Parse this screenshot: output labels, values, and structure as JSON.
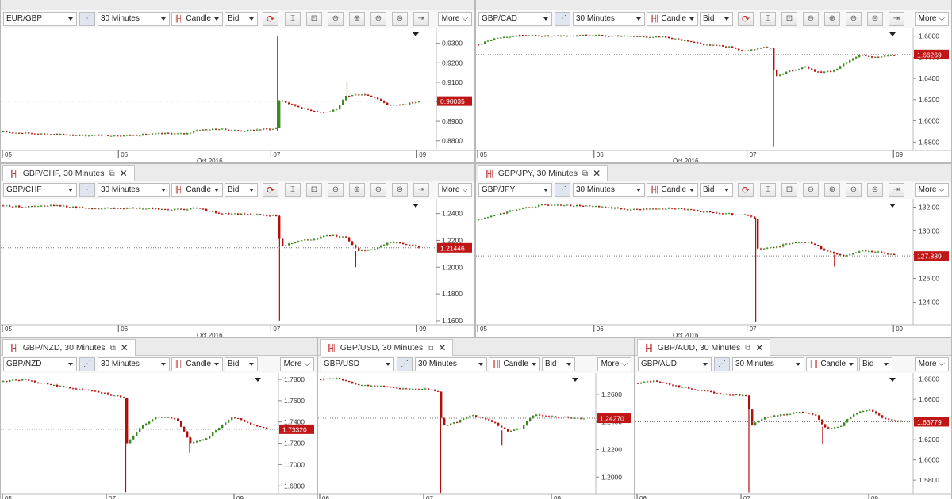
{
  "common": {
    "timeframe": "30 Minutes",
    "chart_type": "Candle",
    "price_side": "Bid",
    "more_label": "More",
    "more_caret": "⌵",
    "close_glyph": "✕",
    "popout_glyph": "⧉",
    "candle_glyph": "╟╢",
    "x_month_label": "Oct 2016",
    "icons": [
      "trend-icon",
      "refresh-icon",
      "cursor-icon",
      "lock-icon",
      "zoom-out-icon",
      "zoom-in-icon",
      "zoom-minus-icon",
      "zoom-reset-icon",
      "scroll-end-icon"
    ],
    "colors": {
      "up": "#3a8a1e",
      "down": "#b20e0e",
      "last_price_bg": "#c01616"
    }
  },
  "panels": [
    {
      "instrument": "EUR/GBP",
      "tab_title": "",
      "x_ticks": [
        "05",
        "06",
        "07",
        "09"
      ],
      "y_ticks": [
        "0.9300",
        "0.9200",
        "0.9100",
        "0.9000",
        "0.8900",
        "0.8800"
      ],
      "last_price": "0.90035"
    },
    {
      "instrument": "GBP/CAD",
      "tab_title": "",
      "x_ticks": [
        "05",
        "06",
        "07",
        "09"
      ],
      "y_ticks": [
        "1.6800",
        "1.6600",
        "1.6400",
        "1.6200",
        "1.6000",
        "1.5800"
      ],
      "last_price": "1.66269"
    },
    {
      "instrument": "GBP/CHF",
      "tab_title": "GBP/CHF, 30 Minutes",
      "x_ticks": [
        "05",
        "06",
        "07",
        "09"
      ],
      "y_ticks": [
        "1.2400",
        "1.2200",
        "1.2000",
        "1.1800",
        "1.1600"
      ],
      "last_price": "1.21446"
    },
    {
      "instrument": "GBP/JPY",
      "tab_title": "GBP/JPY, 30 Minutes",
      "x_ticks": [
        "05",
        "06",
        "07",
        "09"
      ],
      "y_ticks": [
        "132.00",
        "130.00",
        "128.00",
        "126.00",
        "124.00"
      ],
      "last_price": "127.889"
    },
    {
      "instrument": "GBP/NZD",
      "tab_title": "GBP/NZD, 30 Minutes",
      "x_ticks": [
        "05",
        "07",
        "09"
      ],
      "y_ticks": [
        "1.7800",
        "1.7600",
        "1.7400",
        "1.7200",
        "1.7000",
        "1.6800"
      ],
      "last_price": "1.73320"
    },
    {
      "instrument": "GBP/USD",
      "tab_title": "GBP/USD, 30 Minutes",
      "x_ticks": [
        "06",
        "07",
        "09"
      ],
      "y_ticks": [
        "1.2600",
        "1.2400",
        "1.2200",
        "1.2000"
      ],
      "last_price": "1.24270"
    },
    {
      "instrument": "GBP/AUD",
      "tab_title": "GBP/AUD, 30 Minutes",
      "x_ticks": [
        "06",
        "07",
        "09"
      ],
      "y_ticks": [
        "1.6800",
        "1.6600",
        "1.6400",
        "1.6200",
        "1.6000",
        "1.5800"
      ],
      "last_price": "1.63779"
    }
  ],
  "chart_data": [
    {
      "type": "candlestick",
      "instrument": "EUR/GBP",
      "timeframe": "30 Minutes",
      "x_ticks": [
        "05",
        "06",
        "07",
        "09"
      ],
      "y_ticks": [
        0.93,
        0.92,
        0.91,
        0.9,
        0.89,
        0.88
      ],
      "ylim": [
        0.875,
        0.938
      ],
      "last_price": 0.90035,
      "path": [
        [
          0,
          0.8845
        ],
        [
          0.05,
          0.884
        ],
        [
          0.12,
          0.8833
        ],
        [
          0.2,
          0.8828
        ],
        [
          0.3,
          0.8828
        ],
        [
          0.38,
          0.8838
        ],
        [
          0.42,
          0.8835
        ],
        [
          0.45,
          0.8855
        ],
        [
          0.5,
          0.886
        ],
        [
          0.55,
          0.885
        ],
        [
          0.6,
          0.886
        ],
        [
          0.63,
          0.886
        ],
        [
          0.635,
          0.901
        ],
        [
          0.66,
          0.899
        ],
        [
          0.7,
          0.896
        ],
        [
          0.74,
          0.8945
        ],
        [
          0.77,
          0.896
        ],
        [
          0.79,
          0.903
        ],
        [
          0.83,
          0.904
        ],
        [
          0.86,
          0.902
        ],
        [
          0.89,
          0.898
        ],
        [
          0.93,
          0.899
        ],
        [
          0.96,
          0.9003
        ]
      ],
      "spikes": [
        {
          "at": 0.635,
          "high": 0.9335,
          "low": 0.885
        },
        {
          "at": 0.795,
          "high": 0.91,
          "low": 0.901
        }
      ]
    },
    {
      "type": "candlestick",
      "instrument": "GBP/CAD",
      "timeframe": "30 Minutes",
      "x_ticks": [
        "05",
        "06",
        "07",
        "09"
      ],
      "y_ticks": [
        1.68,
        1.66,
        1.64,
        1.62,
        1.6,
        1.58
      ],
      "ylim": [
        1.572,
        1.688
      ],
      "last_price": 1.66269,
      "path": [
        [
          0,
          1.672
        ],
        [
          0.05,
          1.678
        ],
        [
          0.12,
          1.681
        ],
        [
          0.2,
          1.68
        ],
        [
          0.3,
          1.681
        ],
        [
          0.4,
          1.68
        ],
        [
          0.5,
          1.679
        ],
        [
          0.55,
          1.675
        ],
        [
          0.6,
          1.672
        ],
        [
          0.66,
          1.67
        ],
        [
          0.7,
          1.666
        ],
        [
          0.74,
          1.669
        ],
        [
          0.77,
          1.669
        ],
        [
          0.78,
          1.642
        ],
        [
          0.82,
          1.647
        ],
        [
          0.86,
          1.651
        ],
        [
          0.9,
          1.645
        ],
        [
          0.94,
          1.648
        ],
        [
          0.97,
          1.656
        ],
        [
          1.0,
          1.662
        ],
        [
          1.05,
          1.66
        ],
        [
          1.1,
          1.6627
        ]
      ],
      "spikes": [
        {
          "at": 0.78,
          "high": 1.669,
          "low": 1.576
        }
      ]
    },
    {
      "type": "candlestick",
      "instrument": "GBP/CHF",
      "timeframe": "30 Minutes",
      "x_ticks": [
        "05",
        "06",
        "07",
        "09"
      ],
      "y_ticks": [
        1.24,
        1.22,
        1.2,
        1.18,
        1.16
      ],
      "ylim": [
        1.157,
        1.251
      ],
      "last_price": 1.21446,
      "path": [
        [
          0,
          1.246
        ],
        [
          0.05,
          1.245
        ],
        [
          0.12,
          1.246
        ],
        [
          0.2,
          1.244
        ],
        [
          0.3,
          1.244
        ],
        [
          0.4,
          1.243
        ],
        [
          0.45,
          1.244
        ],
        [
          0.5,
          1.24
        ],
        [
          0.6,
          1.239
        ],
        [
          0.63,
          1.2385
        ],
        [
          0.64,
          1.215
        ],
        [
          0.68,
          1.22
        ],
        [
          0.72,
          1.221
        ],
        [
          0.75,
          1.224
        ],
        [
          0.79,
          1.222
        ],
        [
          0.82,
          1.212
        ],
        [
          0.86,
          1.214
        ],
        [
          0.89,
          1.219
        ],
        [
          0.93,
          1.217
        ],
        [
          0.96,
          1.2145
        ]
      ],
      "spikes": [
        {
          "at": 0.64,
          "high": 1.2385,
          "low": 1.16
        },
        {
          "at": 0.815,
          "high": 1.212,
          "low": 1.2
        }
      ]
    },
    {
      "type": "candlestick",
      "instrument": "GBP/JPY",
      "timeframe": "30 Minutes",
      "x_ticks": [
        "05",
        "06",
        "07",
        "09"
      ],
      "y_ticks": [
        132,
        130,
        128,
        126,
        124
      ],
      "ylim": [
        122.1,
        132.7
      ],
      "last_price": 127.889,
      "path": [
        [
          0,
          130.9
        ],
        [
          0.05,
          131.4
        ],
        [
          0.1,
          131.9
        ],
        [
          0.15,
          132.2
        ],
        [
          0.25,
          132.1
        ],
        [
          0.35,
          131.8
        ],
        [
          0.45,
          131.9
        ],
        [
          0.55,
          131.5
        ],
        [
          0.62,
          131.3
        ],
        [
          0.635,
          131.1
        ],
        [
          0.64,
          128.5
        ],
        [
          0.68,
          128.6
        ],
        [
          0.72,
          129.0
        ],
        [
          0.76,
          129.1
        ],
        [
          0.8,
          128.3
        ],
        [
          0.84,
          127.9
        ],
        [
          0.88,
          128.3
        ],
        [
          0.92,
          128.2
        ],
        [
          0.96,
          127.89
        ]
      ],
      "spikes": [
        {
          "at": 0.64,
          "high": 131.1,
          "low": 122.3
        },
        {
          "at": 0.82,
          "high": 128.0,
          "low": 127.0
        }
      ]
    },
    {
      "type": "candlestick",
      "instrument": "GBP/NZD",
      "timeframe": "30 Minutes",
      "x_ticks": [
        "05",
        "07",
        "09"
      ],
      "y_ticks": [
        1.78,
        1.76,
        1.74,
        1.72,
        1.7,
        1.68
      ],
      "ylim": [
        1.672,
        1.786
      ],
      "last_price": 1.7332,
      "path": [
        [
          0,
          1.778
        ],
        [
          0.08,
          1.78
        ],
        [
          0.15,
          1.776
        ],
        [
          0.25,
          1.772
        ],
        [
          0.35,
          1.768
        ],
        [
          0.42,
          1.764
        ],
        [
          0.44,
          1.762
        ],
        [
          0.45,
          1.72
        ],
        [
          0.5,
          1.735
        ],
        [
          0.56,
          1.745
        ],
        [
          0.63,
          1.743
        ],
        [
          0.68,
          1.72
        ],
        [
          0.73,
          1.723
        ],
        [
          0.78,
          1.734
        ],
        [
          0.83,
          1.745
        ],
        [
          0.9,
          1.738
        ],
        [
          0.96,
          1.733
        ]
      ],
      "spikes": [
        {
          "at": 0.45,
          "high": 1.762,
          "low": 1.674
        },
        {
          "at": 0.68,
          "high": 1.726,
          "low": 1.711
        }
      ]
    },
    {
      "type": "candlestick",
      "instrument": "GBP/USD",
      "timeframe": "30 Minutes",
      "x_ticks": [
        "06",
        "07",
        "09"
      ],
      "y_ticks": [
        1.26,
        1.24,
        1.22,
        1.2
      ],
      "ylim": [
        1.1875,
        1.2755
      ],
      "last_price": 1.2427,
      "path": [
        [
          0,
          1.271
        ],
        [
          0.06,
          1.272
        ],
        [
          0.12,
          1.267
        ],
        [
          0.2,
          1.266
        ],
        [
          0.28,
          1.264
        ],
        [
          0.35,
          1.264
        ],
        [
          0.395,
          1.262
        ],
        [
          0.4,
          1.237
        ],
        [
          0.45,
          1.24
        ],
        [
          0.5,
          1.245
        ],
        [
          0.56,
          1.241
        ],
        [
          0.62,
          1.233
        ],
        [
          0.66,
          1.236
        ],
        [
          0.7,
          1.245
        ],
        [
          0.76,
          1.244
        ],
        [
          0.82,
          1.243
        ],
        [
          0.87,
          1.2427
        ]
      ],
      "spikes": [
        {
          "at": 0.4,
          "high": 1.262,
          "low": 1.188
        },
        {
          "at": 0.6,
          "high": 1.234,
          "low": 1.223
        }
      ]
    },
    {
      "type": "candlestick",
      "instrument": "GBP/AUD",
      "timeframe": "30 Minutes",
      "x_ticks": [
        "06",
        "07",
        "09"
      ],
      "y_ticks": [
        1.68,
        1.66,
        1.64,
        1.62,
        1.6,
        1.58
      ],
      "ylim": [
        1.566,
        1.686
      ],
      "last_price": 1.63779,
      "path": [
        [
          0,
          1.676
        ],
        [
          0.06,
          1.678
        ],
        [
          0.12,
          1.674
        ],
        [
          0.2,
          1.67
        ],
        [
          0.3,
          1.665
        ],
        [
          0.38,
          1.664
        ],
        [
          0.395,
          1.663
        ],
        [
          0.4,
          1.633
        ],
        [
          0.45,
          1.642
        ],
        [
          0.52,
          1.645
        ],
        [
          0.58,
          1.648
        ],
        [
          0.63,
          1.644
        ],
        [
          0.67,
          1.631
        ],
        [
          0.72,
          1.634
        ],
        [
          0.77,
          1.646
        ],
        [
          0.82,
          1.65
        ],
        [
          0.88,
          1.64
        ],
        [
          0.94,
          1.6378
        ]
      ],
      "spikes": [
        {
          "at": 0.4,
          "high": 1.663,
          "low": 1.568
        },
        {
          "at": 0.66,
          "high": 1.633,
          "low": 1.616
        }
      ]
    }
  ]
}
